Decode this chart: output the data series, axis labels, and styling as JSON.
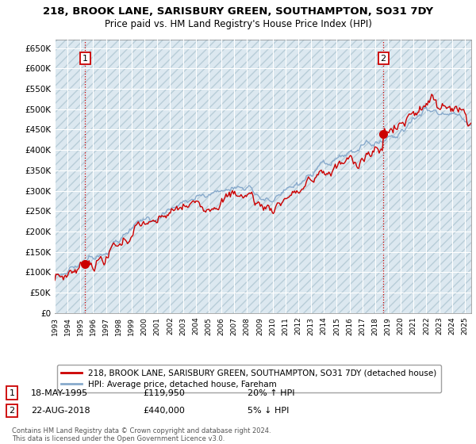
{
  "title_line1": "218, BROOK LANE, SARISBURY GREEN, SOUTHAMPTON, SO31 7DY",
  "title_line2": "Price paid vs. HM Land Registry's House Price Index (HPI)",
  "ylim": [
    0,
    670000
  ],
  "yticks": [
    0,
    50000,
    100000,
    150000,
    200000,
    250000,
    300000,
    350000,
    400000,
    450000,
    500000,
    550000,
    600000,
    650000
  ],
  "ytick_labels": [
    "£0",
    "£50K",
    "£100K",
    "£150K",
    "£200K",
    "£250K",
    "£300K",
    "£350K",
    "£400K",
    "£450K",
    "£500K",
    "£550K",
    "£600K",
    "£650K"
  ],
  "sale1_year": 1995.37,
  "sale1_price": 119950,
  "sale2_year": 2018.64,
  "sale2_price": 440000,
  "sale1_date_str": "18-MAY-1995",
  "sale1_price_str": "£119,950",
  "sale1_hpi_str": "20% ↑ HPI",
  "sale2_date_str": "22-AUG-2018",
  "sale2_price_str": "£440,000",
  "sale2_hpi_str": "5% ↓ HPI",
  "legend_line1": "218, BROOK LANE, SARISBURY GREEN, SOUTHAMPTON, SO31 7DY (detached house)",
  "legend_line2": "HPI: Average price, detached house, Fareham",
  "footer": "Contains HM Land Registry data © Crown copyright and database right 2024.\nThis data is licensed under the Open Government Licence v3.0.",
  "house_color": "#cc0000",
  "hpi_color": "#88aacc",
  "vline_color": "#cc0000",
  "bg_color": "#ffffff",
  "plot_bg_color": "#dce8f0",
  "grid_color": "#ffffff"
}
